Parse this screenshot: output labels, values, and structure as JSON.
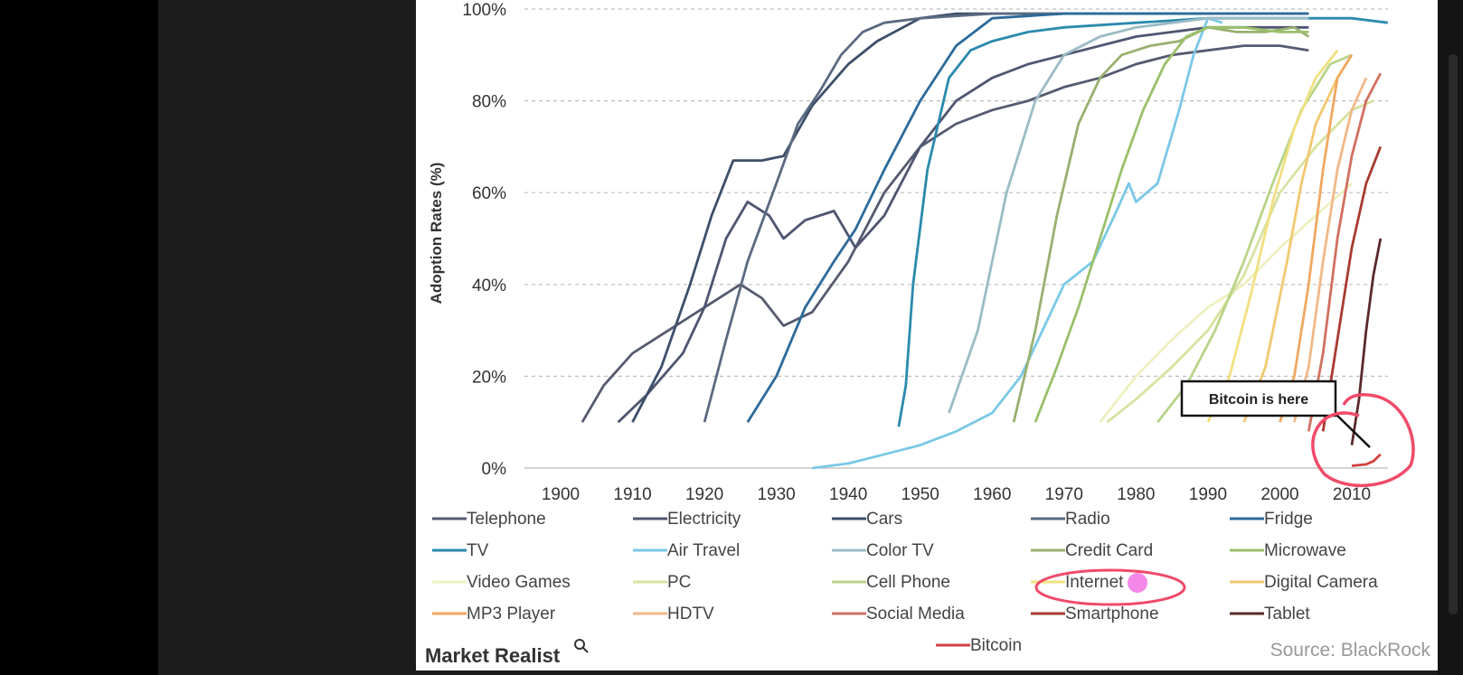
{
  "chart_data": {
    "type": "line",
    "title": "",
    "ylabel": "Adoption Rates (%)",
    "xlabel": "",
    "xlim": [
      1895,
      2016
    ],
    "ylim": [
      0,
      100
    ],
    "x_ticks": [
      1900,
      1910,
      1920,
      1930,
      1940,
      1950,
      1960,
      1970,
      1980,
      1990,
      2000,
      2010
    ],
    "y_ticks": [
      0,
      20,
      40,
      60,
      80,
      100
    ],
    "y_tick_labels": [
      "0%",
      "20%",
      "40%",
      "60%",
      "80%",
      "100%"
    ],
    "grid": "horizontal-dashed",
    "legend_position": "bottom",
    "series": [
      {
        "name": "Telephone",
        "color": "#555a70",
        "points": [
          [
            1903,
            10
          ],
          [
            1906,
            18
          ],
          [
            1910,
            25
          ],
          [
            1915,
            30
          ],
          [
            1920,
            35
          ],
          [
            1925,
            40
          ],
          [
            1928,
            37
          ],
          [
            1931,
            31
          ],
          [
            1935,
            34
          ],
          [
            1940,
            45
          ],
          [
            1945,
            60
          ],
          [
            1950,
            70
          ],
          [
            1955,
            75
          ],
          [
            1960,
            78
          ],
          [
            1965,
            80
          ],
          [
            1970,
            83
          ],
          [
            1975,
            85
          ],
          [
            1980,
            88
          ],
          [
            1985,
            90
          ],
          [
            1990,
            91
          ],
          [
            1995,
            92
          ],
          [
            2000,
            92
          ],
          [
            2004,
            91
          ]
        ]
      },
      {
        "name": "Electricity",
        "color": "#4e5570",
        "points": [
          [
            1908,
            10
          ],
          [
            1912,
            16
          ],
          [
            1917,
            25
          ],
          [
            1920,
            35
          ],
          [
            1923,
            50
          ],
          [
            1926,
            58
          ],
          [
            1929,
            55
          ],
          [
            1931,
            50
          ],
          [
            1934,
            54
          ],
          [
            1938,
            56
          ],
          [
            1941,
            48
          ],
          [
            1945,
            55
          ],
          [
            1950,
            70
          ],
          [
            1955,
            80
          ],
          [
            1960,
            85
          ],
          [
            1965,
            88
          ],
          [
            1970,
            90
          ],
          [
            1980,
            94
          ],
          [
            1990,
            96
          ],
          [
            2000,
            96
          ],
          [
            2004,
            96
          ]
        ]
      },
      {
        "name": "Cars",
        "color": "#3d4f6a",
        "points": [
          [
            1910,
            10
          ],
          [
            1914,
            22
          ],
          [
            1918,
            40
          ],
          [
            1921,
            55
          ],
          [
            1924,
            67
          ],
          [
            1928,
            67
          ],
          [
            1931,
            68
          ],
          [
            1935,
            79
          ],
          [
            1940,
            88
          ],
          [
            1944,
            93
          ],
          [
            1950,
            98
          ],
          [
            1955,
            99
          ],
          [
            1960,
            99
          ],
          [
            1970,
            99
          ],
          [
            1980,
            99
          ],
          [
            1990,
            99
          ],
          [
            2000,
            99
          ],
          [
            2004,
            99
          ]
        ]
      },
      {
        "name": "Radio",
        "color": "#5a6a80",
        "points": [
          [
            1920,
            10
          ],
          [
            1923,
            28
          ],
          [
            1926,
            45
          ],
          [
            1930,
            62
          ],
          [
            1933,
            75
          ],
          [
            1936,
            82
          ],
          [
            1939,
            90
          ],
          [
            1942,
            95
          ],
          [
            1945,
            97
          ],
          [
            1950,
            98
          ],
          [
            1960,
            99
          ],
          [
            1970,
            99
          ],
          [
            1980,
            99
          ],
          [
            1990,
            99
          ],
          [
            2000,
            99
          ],
          [
            2004,
            99
          ]
        ]
      },
      {
        "name": "Fridge",
        "color": "#2c6a9a",
        "points": [
          [
            1926,
            10
          ],
          [
            1930,
            20
          ],
          [
            1934,
            35
          ],
          [
            1938,
            45
          ],
          [
            1941,
            52
          ],
          [
            1945,
            65
          ],
          [
            1950,
            80
          ],
          [
            1955,
            92
          ],
          [
            1960,
            98
          ],
          [
            1970,
            99
          ],
          [
            1980,
            99
          ],
          [
            1990,
            99
          ],
          [
            2000,
            99
          ],
          [
            2004,
            99
          ]
        ]
      },
      {
        "name": "TV",
        "color": "#2a8aac",
        "points": [
          [
            1947,
            9
          ],
          [
            1948,
            18
          ],
          [
            1949,
            40
          ],
          [
            1951,
            65
          ],
          [
            1954,
            85
          ],
          [
            1957,
            91
          ],
          [
            1960,
            93
          ],
          [
            1965,
            95
          ],
          [
            1970,
            96
          ],
          [
            1980,
            97
          ],
          [
            1990,
            98
          ],
          [
            2000,
            98
          ],
          [
            2010,
            98
          ],
          [
            2015,
            97
          ]
        ]
      },
      {
        "name": "Air Travel",
        "color": "#7ac8e6",
        "points": [
          [
            1935,
            0
          ],
          [
            1940,
            1
          ],
          [
            1945,
            3
          ],
          [
            1950,
            5
          ],
          [
            1955,
            8
          ],
          [
            1960,
            12
          ],
          [
            1964,
            20
          ],
          [
            1967,
            30
          ],
          [
            1970,
            40
          ],
          [
            1974,
            45
          ],
          [
            1977,
            55
          ],
          [
            1979,
            62
          ],
          [
            1980,
            58
          ],
          [
            1983,
            62
          ],
          [
            1986,
            78
          ],
          [
            1988,
            90
          ],
          [
            1990,
            98
          ],
          [
            1992,
            97
          ]
        ]
      },
      {
        "name": "Color TV",
        "color": "#9abcc4",
        "points": [
          [
            1954,
            12
          ],
          [
            1958,
            30
          ],
          [
            1962,
            60
          ],
          [
            1966,
            80
          ],
          [
            1970,
            90
          ],
          [
            1975,
            94
          ],
          [
            1980,
            96
          ],
          [
            1990,
            98
          ],
          [
            2000,
            98
          ],
          [
            2004,
            98
          ]
        ]
      },
      {
        "name": "Credit Card",
        "color": "#98b070",
        "points": [
          [
            1963,
            10
          ],
          [
            1966,
            30
          ],
          [
            1969,
            55
          ],
          [
            1972,
            75
          ],
          [
            1975,
            85
          ],
          [
            1978,
            90
          ],
          [
            1982,
            92
          ],
          [
            1986,
            93
          ],
          [
            1990,
            96
          ],
          [
            1994,
            95
          ],
          [
            1998,
            95
          ],
          [
            2002,
            96
          ],
          [
            2004,
            94
          ]
        ]
      },
      {
        "name": "Microwave",
        "color": "#9ac06a",
        "points": [
          [
            1966,
            10
          ],
          [
            1969,
            22
          ],
          [
            1972,
            35
          ],
          [
            1975,
            50
          ],
          [
            1978,
            65
          ],
          [
            1981,
            78
          ],
          [
            1984,
            88
          ],
          [
            1987,
            94
          ],
          [
            1990,
            96
          ],
          [
            1995,
            96
          ],
          [
            2000,
            95
          ],
          [
            2004,
            95
          ]
        ]
      },
      {
        "name": "Video Games",
        "color": "#eef0c0",
        "points": [
          [
            1975,
            10
          ],
          [
            1980,
            20
          ],
          [
            1985,
            28
          ],
          [
            1990,
            35
          ],
          [
            1995,
            40
          ],
          [
            2000,
            48
          ],
          [
            2005,
            55
          ],
          [
            2010,
            62
          ]
        ]
      },
      {
        "name": "PC",
        "color": "#d8e2a0",
        "points": [
          [
            1976,
            10
          ],
          [
            1980,
            15
          ],
          [
            1985,
            22
          ],
          [
            1990,
            30
          ],
          [
            1995,
            42
          ],
          [
            2000,
            60
          ],
          [
            2005,
            70
          ],
          [
            2010,
            78
          ],
          [
            2013,
            80
          ]
        ]
      },
      {
        "name": "Cell Phone",
        "color": "#b8d488",
        "points": [
          [
            1983,
            10
          ],
          [
            1987,
            18
          ],
          [
            1991,
            30
          ],
          [
            1995,
            45
          ],
          [
            1999,
            62
          ],
          [
            2003,
            78
          ],
          [
            2007,
            88
          ],
          [
            2010,
            90
          ]
        ]
      },
      {
        "name": "Internet",
        "color": "#f0e080",
        "points": [
          [
            1990,
            10
          ],
          [
            1993,
            20
          ],
          [
            1996,
            38
          ],
          [
            1999,
            58
          ],
          [
            2002,
            74
          ],
          [
            2005,
            85
          ],
          [
            2008,
            91
          ]
        ]
      },
      {
        "name": "Digital Camera",
        "color": "#f0c870",
        "points": [
          [
            1995,
            10
          ],
          [
            1998,
            22
          ],
          [
            2001,
            45
          ],
          [
            2003,
            62
          ],
          [
            2005,
            75
          ],
          [
            2008,
            85
          ]
        ]
      },
      {
        "name": "MP3 Player",
        "color": "#f0a860",
        "points": [
          [
            2000,
            10
          ],
          [
            2002,
            20
          ],
          [
            2004,
            40
          ],
          [
            2006,
            65
          ],
          [
            2008,
            85
          ],
          [
            2010,
            90
          ]
        ]
      },
      {
        "name": "HDTV",
        "color": "#f0b888",
        "points": [
          [
            2002,
            10
          ],
          [
            2004,
            22
          ],
          [
            2006,
            45
          ],
          [
            2008,
            65
          ],
          [
            2010,
            78
          ],
          [
            2012,
            85
          ]
        ]
      },
      {
        "name": "Social Media",
        "color": "#d07060",
        "points": [
          [
            2004,
            8
          ],
          [
            2006,
            25
          ],
          [
            2008,
            50
          ],
          [
            2010,
            68
          ],
          [
            2012,
            80
          ],
          [
            2014,
            86
          ]
        ]
      },
      {
        "name": "Smartphone",
        "color": "#a83a30",
        "points": [
          [
            2006,
            8
          ],
          [
            2008,
            28
          ],
          [
            2010,
            48
          ],
          [
            2012,
            62
          ],
          [
            2014,
            70
          ]
        ]
      },
      {
        "name": "Tablet",
        "color": "#5a2a2a",
        "points": [
          [
            2010,
            5
          ],
          [
            2011,
            15
          ],
          [
            2012,
            30
          ],
          [
            2013,
            42
          ],
          [
            2014,
            50
          ]
        ]
      },
      {
        "name": "Bitcoin",
        "color": "#d04040",
        "points": [
          [
            2010,
            0.5
          ],
          [
            2012,
            0.8
          ],
          [
            2013,
            1.5
          ],
          [
            2014,
            3
          ]
        ]
      }
    ],
    "annotations": [
      {
        "text": "Bitcoin is here"
      }
    ],
    "brand": "Market Realist",
    "source": "Source: BlackRock"
  }
}
